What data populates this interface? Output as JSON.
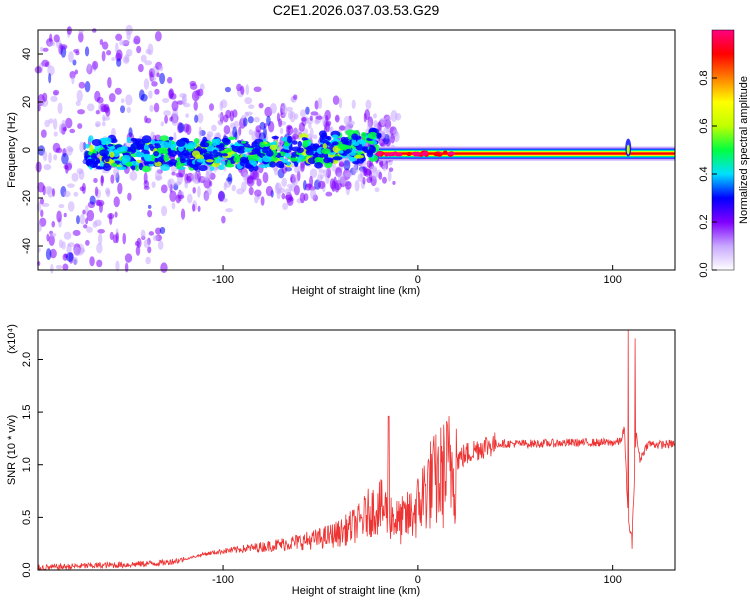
{
  "title": "C2E1.2026.037.03.53.G29",
  "charts": [
    {
      "type": "heatmap",
      "xlabel": "Height of straight line (km)",
      "ylabel": "Frequency (Hz)",
      "xlim": [
        -195,
        132
      ],
      "ylim": [
        -50,
        50
      ],
      "xticks": [
        -100,
        0,
        100
      ],
      "xtick_labels": [
        "-100",
        "0",
        "100"
      ],
      "yticks": [
        -40,
        -20,
        0,
        20,
        40
      ],
      "ytick_labels": [
        "-40",
        "-20",
        "0",
        "20",
        "40"
      ],
      "grid": false,
      "colorbar": {
        "label": "Normalized spectral amplitude",
        "range": [
          0,
          1
        ],
        "ticks": [
          0,
          0.2,
          0.4,
          0.6,
          0.8
        ],
        "tick_labels": [
          "0.0",
          "0.2",
          "0.4",
          "0.6",
          "0.8"
        ],
        "colormap": [
          "#ffffff",
          "#c8a8ff",
          "#8000ff",
          "#0000ff",
          "#00e0ff",
          "#00ff40",
          "#c0ff00",
          "#ffff00",
          "#ff8000",
          "#ff0000",
          "#ff0080"
        ]
      },
      "features": {
        "signal_band_center_hz": -1.5,
        "signal_band_halfwidth_hz": 2,
        "strong_signal_from_km": -20,
        "noise_region_until_km": -20,
        "spike_at_km": 108
      }
    },
    {
      "type": "line",
      "xlabel": "Height of straight line (km)",
      "ylabel": "SNR (10 * v/v)",
      "y_scale_label": "(x10⁴)",
      "xlim": [
        -195,
        132
      ],
      "ylim": [
        0,
        2.28
      ],
      "xticks": [
        -100,
        0,
        100
      ],
      "xtick_labels": [
        "-100",
        "0",
        "100"
      ],
      "yticks": [
        0,
        0.5,
        1.0,
        1.5,
        2.0
      ],
      "ytick_labels": [
        "0.0",
        "0.5",
        "1.0",
        "1.5",
        "2.0"
      ],
      "color": "#ee3333",
      "grid": false,
      "series": [
        {
          "name": "SNR",
          "x": [
            -195,
            -170,
            -150,
            -130,
            -120,
            -110,
            -100,
            -80,
            -60,
            -50,
            -40,
            -30,
            -25,
            -20,
            -15,
            -10,
            -5,
            0,
            5,
            10,
            15,
            20,
            25,
            30,
            35,
            40,
            60,
            80,
            100,
            104,
            106,
            108,
            110,
            112,
            114,
            118,
            125,
            132
          ],
          "values": [
            0.02,
            0.04,
            0.05,
            0.07,
            0.1,
            0.15,
            0.18,
            0.22,
            0.27,
            0.3,
            0.35,
            0.45,
            0.55,
            0.6,
            0.55,
            0.45,
            0.5,
            0.6,
            0.8,
            0.85,
            0.95,
            1.05,
            1.1,
            1.15,
            1.18,
            1.2,
            1.2,
            1.21,
            1.21,
            1.22,
            1.35,
            0.45,
            0.3,
            1.3,
            1.05,
            1.2,
            1.19,
            1.2
          ]
        }
      ],
      "features": {
        "spike_x_km": 108,
        "spike_max": 2.28,
        "spike_min": 0.2,
        "sharp_peak_x_km": -15,
        "sharp_peak_value": 1.46
      }
    }
  ]
}
